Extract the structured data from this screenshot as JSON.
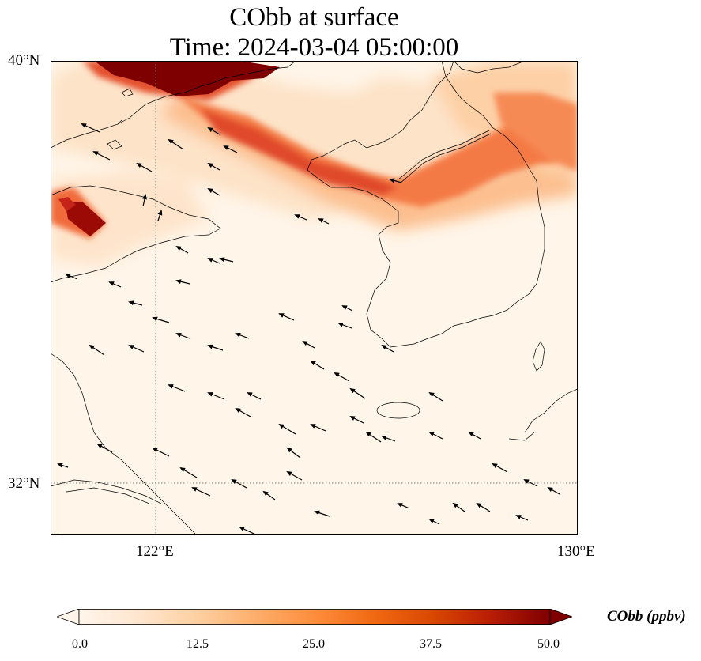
{
  "title": {
    "line1": "CObb at surface",
    "line2": "Time: 2024-03-04 05:00:00"
  },
  "map": {
    "lat_range": [
      31,
      40
    ],
    "lon_range": [
      120,
      130
    ],
    "lat_labels": [
      {
        "value": 40,
        "text": "40°N"
      },
      {
        "value": 32,
        "text": "32°N"
      }
    ],
    "lon_labels": [
      {
        "value": 122,
        "text": "122°E"
      },
      {
        "value": 130,
        "text": "130°E"
      }
    ],
    "gridlines": {
      "lat": [
        32
      ],
      "lon": [
        122
      ]
    },
    "field_units": "ppbv",
    "colormap": [
      "#fff5eb",
      "#fee6ce",
      "#fdd0a2",
      "#fdae6b",
      "#fd8d3c",
      "#f16913",
      "#d94801",
      "#a63603",
      "#7f0000"
    ]
  },
  "colorbar": {
    "label": "CObb (ppbv)",
    "min": 0.0,
    "max": 50.0,
    "extend": "both",
    "ticks": [
      "0.0",
      "12.5",
      "25.0",
      "37.5",
      "50.0"
    ]
  }
}
